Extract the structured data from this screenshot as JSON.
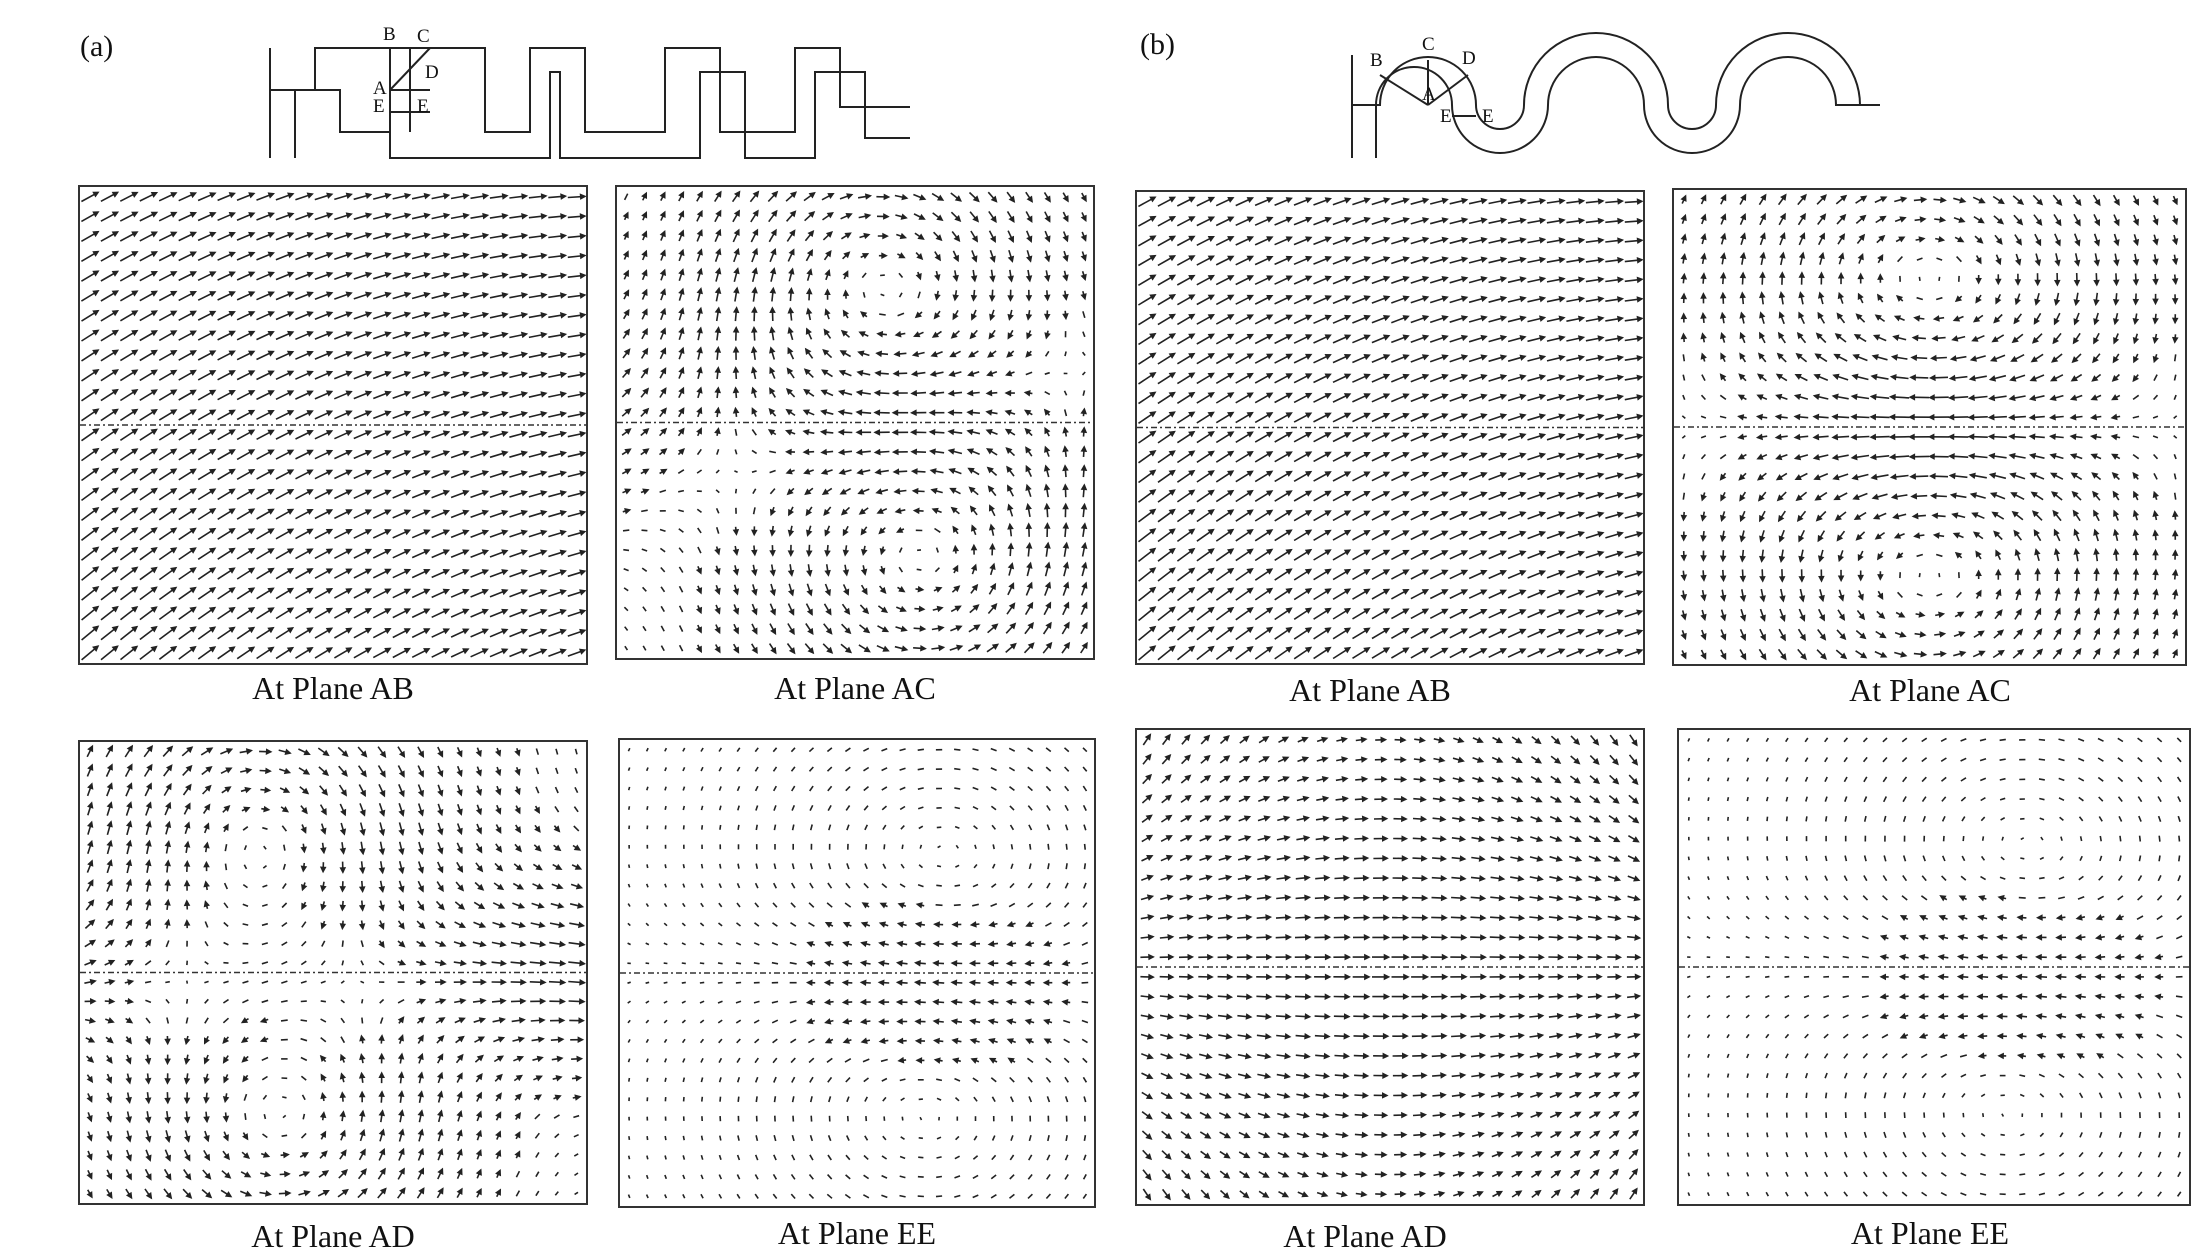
{
  "figure": {
    "panel_a_label": "(a)",
    "panel_b_label": "(b)",
    "schematic_a_points": [
      "B",
      "C",
      "D",
      "A",
      "E",
      "E"
    ],
    "schematic_b_points": [
      "B",
      "C",
      "D",
      "A",
      "E",
      "E"
    ],
    "plots_a": [
      {
        "caption": "At Plane AB",
        "pattern": "diagonal-shear"
      },
      {
        "caption": "At Plane AC",
        "pattern": "twin-vortex-tilted"
      },
      {
        "caption": "At Plane AD",
        "pattern": "twin-vortex-strong"
      },
      {
        "caption": "At Plane EE",
        "pattern": "twin-vortex-weak"
      }
    ],
    "plots_b": [
      {
        "caption": "At Plane AB",
        "pattern": "diagonal-shear"
      },
      {
        "caption": "At Plane AC",
        "pattern": "twin-vortex-symmetric"
      },
      {
        "caption": "At Plane AD",
        "pattern": "hourglass"
      },
      {
        "caption": "At Plane EE",
        "pattern": "twin-vortex-weak"
      }
    ]
  }
}
